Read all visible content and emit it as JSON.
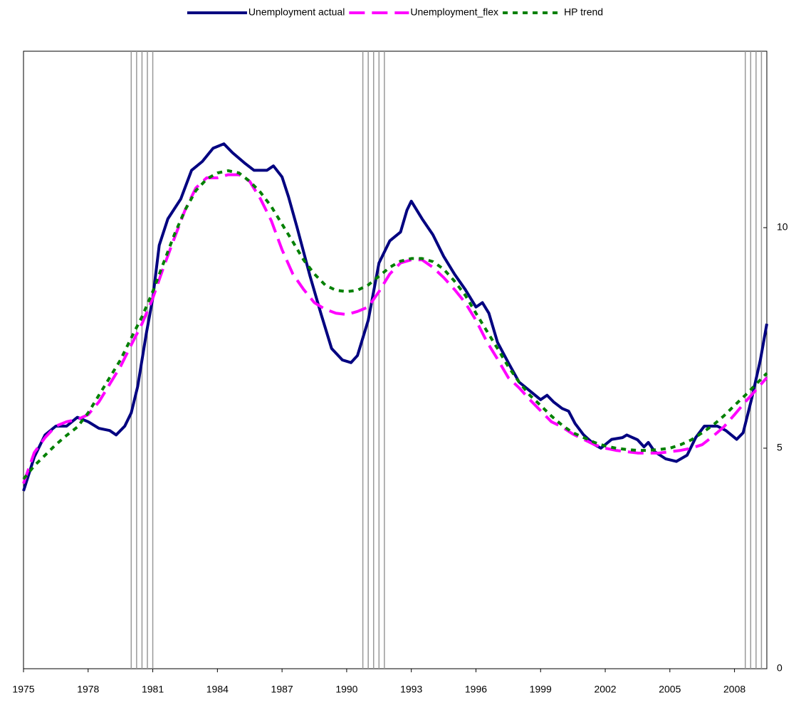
{
  "chart_data": {
    "type": "line",
    "legend": "top",
    "xlim": [
      1975,
      2009.5
    ],
    "xticks": [
      1975,
      1978,
      1981,
      1984,
      1987,
      1990,
      1993,
      1996,
      1999,
      2002,
      2005,
      2008
    ],
    "ylim": [
      0,
      14
    ],
    "yticks": [
      0,
      5,
      10
    ],
    "recession_lines": [
      1980,
      1980.25,
      1980.5,
      1980.75,
      1981,
      1990.75,
      1991,
      1991.25,
      1991.5,
      1991.75,
      2008.5,
      2008.75,
      2009,
      2009.25
    ],
    "series": [
      {
        "name": "Unemployment actual",
        "color": "#000080",
        "style": "solid",
        "x": [
          1975,
          1975.5,
          1976,
          1976.5,
          1977,
          1977.5,
          1978,
          1978.5,
          1979,
          1979.3,
          1979.7,
          1980,
          1980.3,
          1980.7,
          1981,
          1981.3,
          1981.7,
          1982.3,
          1982.8,
          1983.3,
          1983.8,
          1984.3,
          1984.7,
          1985.3,
          1985.7,
          1986.3,
          1986.6,
          1987,
          1987.3,
          1987.7,
          1988.3,
          1988.8,
          1989.3,
          1989.8,
          1990.2,
          1990.5,
          1991,
          1991.5,
          1992,
          1992.5,
          1992.8,
          1993,
          1993.5,
          1994,
          1994.5,
          1995,
          1995.5,
          1996,
          1996.3,
          1996.6,
          1997,
          1997.5,
          1998,
          1998.5,
          1999,
          1999.3,
          1999.6,
          2000,
          2000.3,
          2000.6,
          2001,
          2001.5,
          2001.8,
          2002.3,
          2002.8,
          2003,
          2003.5,
          2003.8,
          2004,
          2004.3,
          2004.8,
          2005.3,
          2005.8,
          2006.2,
          2006.6,
          2007.2,
          2007.6,
          2008.1,
          2008.4,
          2008.8,
          2009.2,
          2009.5
        ],
        "values": [
          4.03,
          4.8,
          5.3,
          5.5,
          5.5,
          5.7,
          5.6,
          5.45,
          5.4,
          5.3,
          5.5,
          5.8,
          6.4,
          7.6,
          8.4,
          9.6,
          10.2,
          10.65,
          11.3,
          11.5,
          11.8,
          11.9,
          11.7,
          11.45,
          11.3,
          11.3,
          11.4,
          11.15,
          10.7,
          10.0,
          8.9,
          8.06,
          7.26,
          7.0,
          6.94,
          7.1,
          7.9,
          9.2,
          9.7,
          9.9,
          10.4,
          10.6,
          10.2,
          9.84,
          9.35,
          8.95,
          8.6,
          8.2,
          8.3,
          8.06,
          7.4,
          6.94,
          6.5,
          6.3,
          6.1,
          6.2,
          6.05,
          5.9,
          5.84,
          5.56,
          5.3,
          5.08,
          5.0,
          5.2,
          5.24,
          5.3,
          5.19,
          5.03,
          5.13,
          4.92,
          4.76,
          4.7,
          4.84,
          5.24,
          5.5,
          5.5,
          5.4,
          5.2,
          5.35,
          6.13,
          7.0,
          7.82
        ]
      },
      {
        "name": "Unemployment_flex",
        "color": "#ff00ff",
        "style": "dashed",
        "x": [
          1975,
          1975.5,
          1976,
          1976.5,
          1977,
          1977.5,
          1978,
          1978.5,
          1979,
          1979.5,
          1980,
          1980.5,
          1981,
          1981.5,
          1982,
          1982.5,
          1983,
          1983.5,
          1984,
          1984.5,
          1985,
          1985.5,
          1986,
          1986.5,
          1987,
          1987.5,
          1988,
          1988.5,
          1989,
          1989.5,
          1990,
          1990.5,
          1991,
          1991.5,
          1992,
          1992.5,
          1993,
          1993.5,
          1994,
          1994.5,
          1995,
          1995.5,
          1996,
          1996.5,
          1997,
          1997.5,
          1998,
          1998.5,
          1999,
          1999.5,
          2000,
          2000.5,
          2001,
          2001.5,
          2002,
          2002.5,
          2003,
          2003.5,
          2004,
          2004.5,
          2005,
          2005.5,
          2006,
          2006.5,
          2007,
          2007.5,
          2008,
          2008.5,
          2009,
          2009.5
        ],
        "values": [
          4.2,
          4.9,
          5.24,
          5.5,
          5.6,
          5.65,
          5.76,
          6.05,
          6.45,
          6.85,
          7.34,
          7.82,
          8.4,
          9.1,
          9.76,
          10.4,
          10.9,
          11.13,
          11.13,
          11.2,
          11.2,
          11.05,
          10.65,
          10.16,
          9.5,
          8.95,
          8.6,
          8.3,
          8.15,
          8.06,
          8.03,
          8.1,
          8.2,
          8.55,
          8.95,
          9.2,
          9.27,
          9.27,
          9.1,
          8.87,
          8.6,
          8.3,
          7.9,
          7.42,
          7.02,
          6.6,
          6.37,
          6.1,
          5.85,
          5.6,
          5.48,
          5.32,
          5.2,
          5.08,
          5.0,
          4.95,
          4.92,
          4.89,
          4.89,
          4.89,
          4.92,
          4.95,
          5.0,
          5.08,
          5.27,
          5.48,
          5.76,
          6.05,
          6.32,
          6.6
        ]
      },
      {
        "name": "HP trend",
        "color": "#008000",
        "style": "dotted",
        "x": [
          1975,
          1975.5,
          1976,
          1976.5,
          1977,
          1977.5,
          1978,
          1978.5,
          1979,
          1979.5,
          1980,
          1980.5,
          1981,
          1981.5,
          1982,
          1982.5,
          1983,
          1983.5,
          1984,
          1984.5,
          1985,
          1985.5,
          1986,
          1986.5,
          1987,
          1987.5,
          1988,
          1988.5,
          1989,
          1989.5,
          1990,
          1990.5,
          1991,
          1991.5,
          1992,
          1992.5,
          1993,
          1993.5,
          1994,
          1994.5,
          1995,
          1995.5,
          1996,
          1996.5,
          1997,
          1997.5,
          1998,
          1998.5,
          1999,
          1999.5,
          2000,
          2000.5,
          2001,
          2001.5,
          2002,
          2002.5,
          2003,
          2003.5,
          2004,
          2004.5,
          2005,
          2005.5,
          2006,
          2006.5,
          2007,
          2007.5,
          2008,
          2008.5,
          2009,
          2009.5
        ],
        "values": [
          4.3,
          4.6,
          4.84,
          5.08,
          5.29,
          5.48,
          5.8,
          6.2,
          6.6,
          7.0,
          7.5,
          7.98,
          8.55,
          9.2,
          9.84,
          10.4,
          10.84,
          11.1,
          11.24,
          11.29,
          11.24,
          11.05,
          10.8,
          10.48,
          10.08,
          9.68,
          9.27,
          8.95,
          8.7,
          8.58,
          8.55,
          8.58,
          8.7,
          8.9,
          9.1,
          9.24,
          9.3,
          9.3,
          9.23,
          9.06,
          8.79,
          8.47,
          8.06,
          7.66,
          7.26,
          6.85,
          6.5,
          6.2,
          5.97,
          5.73,
          5.52,
          5.35,
          5.24,
          5.13,
          5.05,
          5.0,
          4.97,
          4.95,
          4.95,
          4.97,
          5.0,
          5.08,
          5.19,
          5.35,
          5.52,
          5.73,
          5.97,
          6.2,
          6.45,
          6.7
        ]
      }
    ]
  }
}
